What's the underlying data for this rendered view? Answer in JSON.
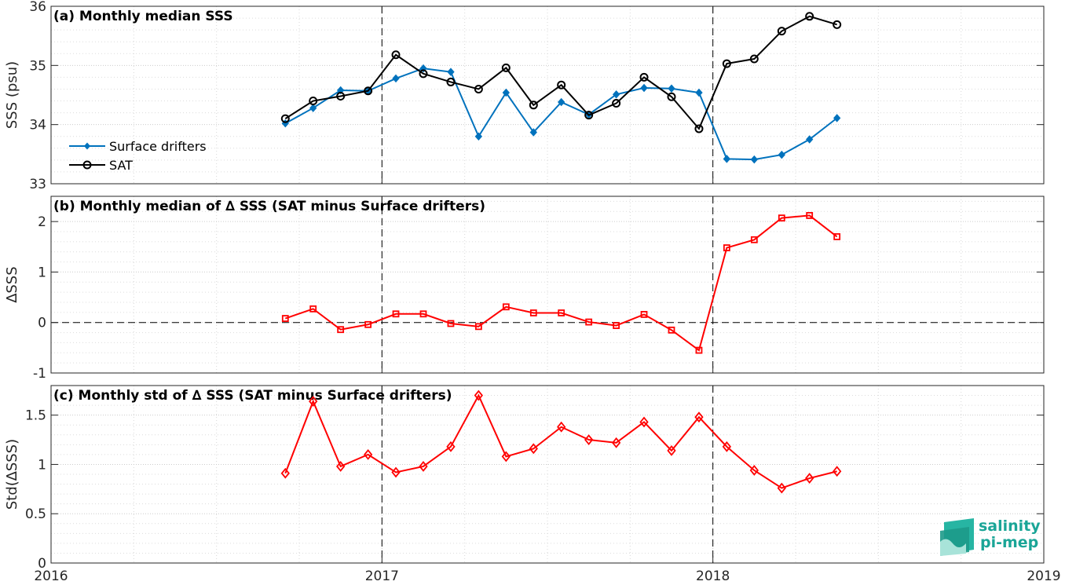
{
  "chart_data": [
    {
      "type": "line",
      "title": "(a) Monthly median SSS",
      "ylabel": "SSS (psu)",
      "xlim": [
        2016,
        2019
      ],
      "ylim": [
        33,
        36
      ],
      "yticks": [
        "33",
        "34",
        "35",
        "36"
      ],
      "grid": true,
      "legend_position": "middle-left",
      "x": [
        2016.708,
        2016.792,
        2016.875,
        2016.958,
        2017.042,
        2017.125,
        2017.208,
        2017.292,
        2017.375,
        2017.458,
        2017.542,
        2017.625,
        2017.708,
        2017.792,
        2017.875,
        2017.958,
        2018.042,
        2018.125,
        2018.208,
        2018.292,
        2018.375
      ],
      "series": [
        {
          "name": "Surface drifters",
          "color": "#0072bd",
          "marker": "diamond-filled",
          "values": [
            34.02,
            34.28,
            34.58,
            34.57,
            34.78,
            34.95,
            34.89,
            33.8,
            34.54,
            33.87,
            34.38,
            34.17,
            34.51,
            34.62,
            34.61,
            34.54,
            33.42,
            33.41,
            33.49,
            33.75,
            34.11
          ]
        },
        {
          "name": "SAT",
          "color": "#000000",
          "marker": "circle-open",
          "values": [
            34.1,
            34.4,
            34.48,
            34.57,
            35.18,
            34.86,
            34.72,
            34.6,
            34.96,
            34.33,
            34.67,
            34.16,
            34.36,
            34.8,
            34.47,
            33.93,
            35.03,
            35.11,
            35.58,
            35.83,
            35.69
          ]
        }
      ]
    },
    {
      "type": "line",
      "title": "(b) Monthly median of ∆ SSS (SAT minus Surface drifters)",
      "ylabel": "∆SSS",
      "xlim": [
        2016,
        2019
      ],
      "ylim": [
        -1,
        2.5
      ],
      "yticks": [
        "-1",
        "0",
        "1",
        "2"
      ],
      "grid": true,
      "x": [
        2016.708,
        2016.792,
        2016.875,
        2016.958,
        2017.042,
        2017.125,
        2017.208,
        2017.292,
        2017.375,
        2017.458,
        2017.542,
        2017.625,
        2017.708,
        2017.792,
        2017.875,
        2017.958,
        2018.042,
        2018.125,
        2018.208,
        2018.292,
        2018.375
      ],
      "series": [
        {
          "color": "#ff0000",
          "marker": "square-open",
          "values": [
            0.08,
            0.27,
            -0.14,
            -0.04,
            0.17,
            0.17,
            -0.02,
            -0.08,
            0.31,
            0.19,
            0.19,
            0.01,
            -0.06,
            0.16,
            -0.15,
            -0.55,
            1.48,
            1.64,
            2.07,
            2.12,
            1.7
          ]
        }
      ]
    },
    {
      "type": "line",
      "title": "(c) Monthly std of ∆ SSS (SAT minus Surface drifters)",
      "ylabel": "Std(∆SSS)",
      "xlim": [
        2016,
        2019
      ],
      "ylim": [
        0,
        1.8
      ],
      "yticks": [
        "0",
        "0.5",
        "1",
        "1.5"
      ],
      "xticks": [
        "2016",
        "2017",
        "2018",
        "2019"
      ],
      "grid": true,
      "x": [
        2016.708,
        2016.792,
        2016.875,
        2016.958,
        2017.042,
        2017.125,
        2017.208,
        2017.292,
        2017.375,
        2017.458,
        2017.542,
        2017.625,
        2017.708,
        2017.792,
        2017.875,
        2017.958,
        2018.042,
        2018.125,
        2018.208,
        2018.292,
        2018.375
      ],
      "series": [
        {
          "color": "#ff0000",
          "marker": "diamond-open",
          "values": [
            0.91,
            1.64,
            0.98,
            1.1,
            0.92,
            0.98,
            1.18,
            1.7,
            1.08,
            1.16,
            1.38,
            1.25,
            1.22,
            1.43,
            1.14,
            1.48,
            1.18,
            0.94,
            0.76,
            0.86,
            0.93
          ]
        }
      ]
    }
  ],
  "logo": {
    "line1": "salinity",
    "line2": "pi-mep",
    "color": "#1aa597"
  }
}
